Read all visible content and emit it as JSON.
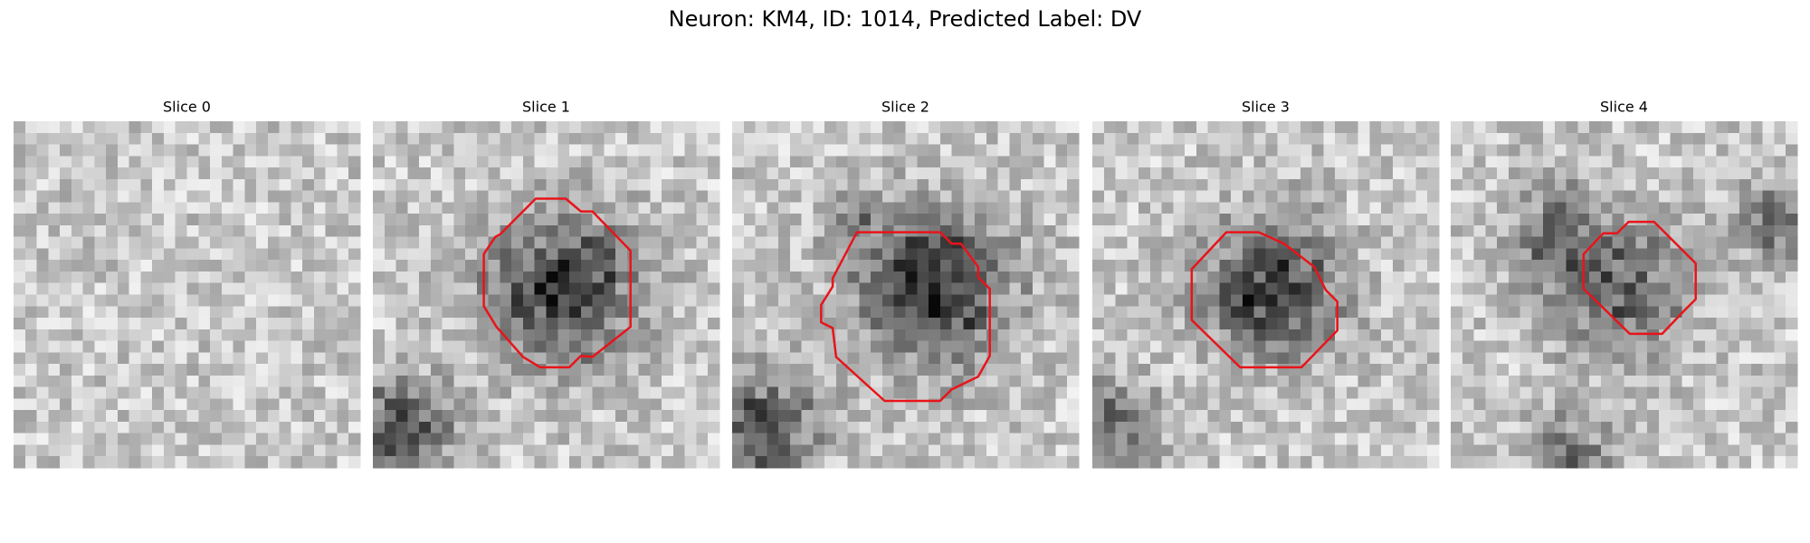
{
  "title": "Neuron: KM4, ID: 1014, Predicted Label: DV",
  "panels": [
    {
      "title": "Slice 0"
    },
    {
      "title": "Slice 1"
    },
    {
      "title": "Slice 2"
    },
    {
      "title": "Slice 3"
    },
    {
      "title": "Slice 4"
    }
  ]
}
